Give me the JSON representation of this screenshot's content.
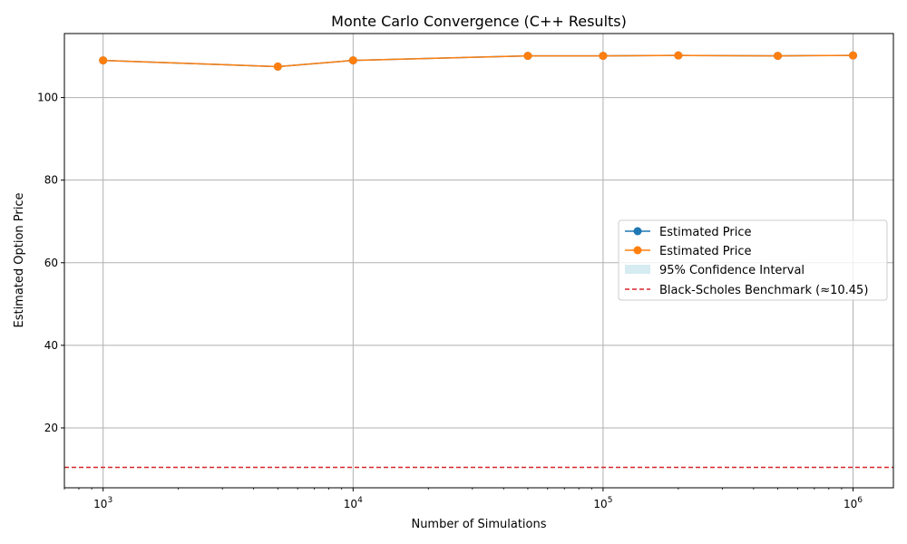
{
  "chart_data": {
    "type": "line",
    "title": "Monte Carlo Convergence (C++ Results)",
    "xlabel": "Number of Simulations",
    "ylabel": "Estimated Option Price",
    "x_scale": "log",
    "xlim": [
      700,
      1450000
    ],
    "ylim": [
      5.5,
      115.5
    ],
    "x_ticks": [
      {
        "value": 1000,
        "base": "10",
        "exp": "3"
      },
      {
        "value": 10000,
        "base": "10",
        "exp": "4"
      },
      {
        "value": 100000,
        "base": "10",
        "exp": "5"
      },
      {
        "value": 1000000,
        "base": "10",
        "exp": "6"
      }
    ],
    "y_ticks": [
      20,
      40,
      60,
      80,
      100
    ],
    "grid": true,
    "legend_position": "center-right",
    "x": [
      1000,
      5000,
      10000,
      50000,
      100000,
      200000,
      500000,
      1000000
    ],
    "series": [
      {
        "name": "Estimated Price",
        "color": "#1f77b4",
        "values": [
          109.0,
          107.5,
          109.0,
          110.1,
          110.1,
          110.2,
          110.1,
          110.2
        ]
      },
      {
        "name": "Estimated Price",
        "color": "#ff7f0e",
        "values": [
          109.0,
          107.5,
          109.0,
          110.1,
          110.1,
          110.2,
          110.1,
          110.2
        ]
      }
    ],
    "confidence_interval": {
      "name": "95% Confidence Interval",
      "color": "#add8e6"
    },
    "benchmark": {
      "name": "Black-Scholes Benchmark (≈10.45)",
      "value": 10.45,
      "color": "#d62728"
    }
  }
}
